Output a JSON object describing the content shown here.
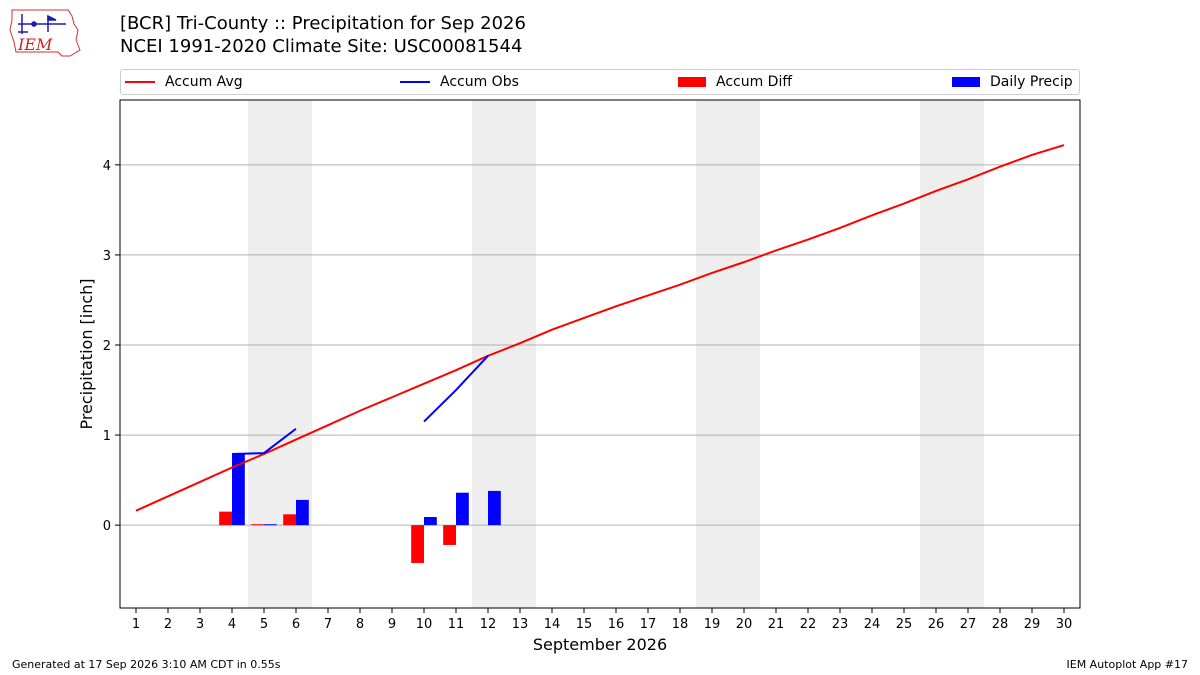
{
  "header": {
    "title_line1": "[BCR] Tri-County :: Precipitation for Sep 2026",
    "title_line2": "NCEI 1991-2020 Climate Site: USC00081544",
    "logo_text": "IEM"
  },
  "legend": {
    "accum_avg": "Accum Avg",
    "accum_obs": "Accum Obs",
    "accum_diff": "Accum Diff",
    "daily_precip": "Daily Precip"
  },
  "footer": {
    "generated": "Generated at 17 Sep 2026 3:10 AM CDT in 0.55s",
    "app": "IEM Autoplot App #17"
  },
  "colors": {
    "avg": "#ff0000",
    "obs": "#0000ff",
    "diff": "#ff0000",
    "daily": "#0000ff",
    "weekend_shade": "#eeeeee",
    "grid": "#b0b0b0"
  },
  "chart_data": {
    "type": "bar",
    "title": "[BCR] Tri-County :: Precipitation for Sep 2026",
    "subtitle": "NCEI 1991-2020 Climate Site: USC00081544",
    "xlabel": "September 2026",
    "ylabel": "Precipitation [inch]",
    "x": [
      1,
      2,
      3,
      4,
      5,
      6,
      7,
      8,
      9,
      10,
      11,
      12,
      13,
      14,
      15,
      16,
      17,
      18,
      19,
      20,
      21,
      22,
      23,
      24,
      25,
      26,
      27,
      28,
      29,
      30
    ],
    "ylim": [
      -0.92,
      4.72
    ],
    "yticks": [
      0,
      1,
      2,
      3,
      4
    ],
    "grid": "horizontal",
    "legend_position": "top",
    "shaded_days": [
      5,
      6,
      12,
      13,
      19,
      20,
      26,
      27
    ],
    "series": [
      {
        "name": "Accum Avg",
        "type": "line",
        "x": [
          1,
          2,
          3,
          4,
          5,
          6,
          7,
          8,
          9,
          10,
          11,
          12,
          13,
          14,
          15,
          16,
          17,
          18,
          19,
          20,
          21,
          22,
          23,
          24,
          25,
          26,
          27,
          28,
          29,
          30
        ],
        "values": [
          0.16,
          0.32,
          0.48,
          0.64,
          0.79,
          0.95,
          1.11,
          1.27,
          1.42,
          1.57,
          1.72,
          1.88,
          2.02,
          2.17,
          2.3,
          2.43,
          2.55,
          2.67,
          2.8,
          2.92,
          3.05,
          3.17,
          3.3,
          3.44,
          3.57,
          3.71,
          3.84,
          3.98,
          4.11,
          4.22
        ]
      },
      {
        "name": "Accum Obs",
        "type": "line",
        "segments": [
          {
            "x": [
              4,
              5,
              6
            ],
            "values": [
              0.79,
              0.8,
              1.07
            ]
          },
          {
            "x": [
              10,
              11,
              12
            ],
            "values": [
              1.15,
              1.5,
              1.88
            ]
          }
        ]
      },
      {
        "name": "Accum Diff",
        "type": "bar",
        "x": [
          4,
          5,
          6,
          10,
          11,
          12
        ],
        "values": [
          0.15,
          0.01,
          0.12,
          -0.42,
          -0.22,
          0.0
        ]
      },
      {
        "name": "Daily Precip",
        "type": "bar",
        "x": [
          4,
          5,
          6,
          10,
          11,
          12
        ],
        "values": [
          0.79,
          0.01,
          0.28,
          0.09,
          0.36,
          0.38
        ]
      }
    ]
  }
}
